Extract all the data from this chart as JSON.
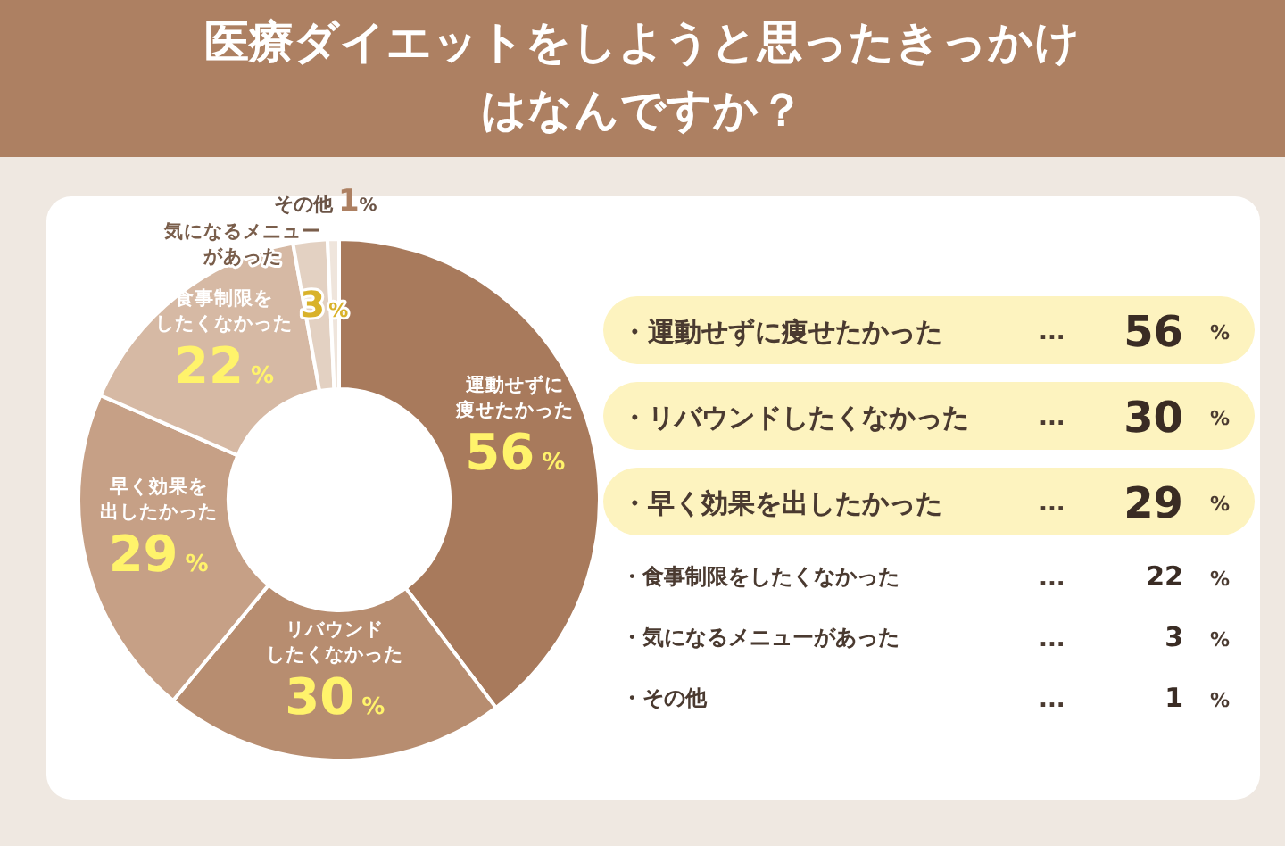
{
  "chart_data": {
    "type": "donut",
    "title": "医療ダイエットをしようと思ったきっかけはなんですか？",
    "categories": [
      "運動せずに痩せたかった",
      "リバウンドしたくなかった",
      "早く効果を出したかった",
      "食事制限をしたくなかった",
      "気になるメニューがあった",
      "その他"
    ],
    "values": [
      56,
      30,
      29,
      22,
      3,
      1
    ],
    "value_labels": [
      "56%",
      "30%",
      "29%",
      "22%",
      "3%",
      "1%"
    ],
    "colors": [
      "#a87a5c",
      "#b78d70",
      "#c6a086",
      "#d6b9a4",
      "#e3d1c2",
      "#efe5dc"
    ],
    "data_labels": true,
    "annotations": [
      "・運動せずに痩せたかった ... 56 %",
      "・リバウンドしたくなかった ... 30 %",
      "・早く効果を出したかった ... 29 %",
      "・食事制限をしたくなかった ... 22 %",
      "・気になるメニューがあった ... 3 %",
      "・その他 ... 1 %"
    ]
  }
}
